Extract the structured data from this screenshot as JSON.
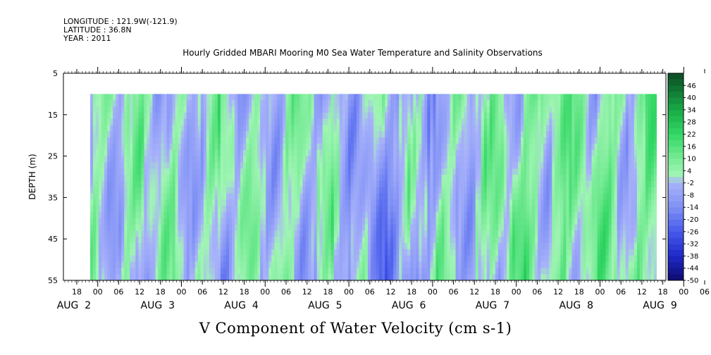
{
  "header": {
    "longitude": "LONGITUDE : 121.9W(-121.9)",
    "latitude": "LATITUDE : 36.8N",
    "year": "YEAR : 2011"
  },
  "chart_data": {
    "type": "heatmap",
    "title": "Hourly Gridded MBARI Mooring M0 Sea Water Temperature and Salinity Observations",
    "xlabel": "V Component of Water Velocity (cm s-1)",
    "ylabel": "DEPTH (m)",
    "y_ticks": [
      5,
      15,
      25,
      35,
      45,
      55
    ],
    "ylim": [
      55,
      5
    ],
    "data_depth_range": [
      10,
      55
    ],
    "x_hour_labels": [
      "18",
      "00",
      "06",
      "12",
      "18",
      "00",
      "06",
      "12",
      "18",
      "00",
      "06",
      "12",
      "18",
      "00",
      "06",
      "12",
      "18",
      "00",
      "06",
      "12",
      "18",
      "00",
      "06",
      "12",
      "18",
      "00",
      "06",
      "12",
      "18",
      "00",
      "06",
      "12"
    ],
    "x_day_labels": [
      "AUG  2",
      "AUG  3",
      "AUG  4",
      "AUG  5",
      "AUG  6",
      "AUG  7",
      "AUG  8",
      "AUG  9"
    ],
    "colorbar_labels": [
      "46",
      "40",
      "34",
      "28",
      "22",
      "16",
      "10",
      "4",
      "-2",
      "-8",
      "-14",
      "-20",
      "-26",
      "-32",
      "-38",
      "-44",
      "-50"
    ],
    "colorbar_range": [
      -50,
      52
    ],
    "colorbar_step": 3,
    "colors": {
      "negative_strong": "#2733c9",
      "negative_mid": "#7f8ff5",
      "negative_weak": "#a6b0f8",
      "positive_weak": "#9cf3b4",
      "positive_mid": "#44dd70",
      "positive_strong": "#0e8a3c"
    },
    "grid": false,
    "legend": "right"
  }
}
